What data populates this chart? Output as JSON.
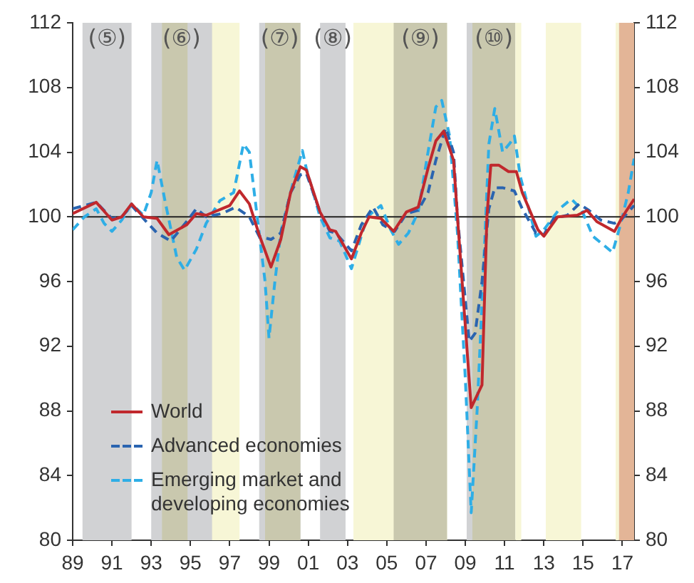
{
  "chart_data": {
    "type": "line",
    "xlim": [
      1989,
      2017.6
    ],
    "xticks": [
      {
        "value": 1989,
        "label": "89"
      },
      {
        "value": 1991,
        "label": "91"
      },
      {
        "value": 1993,
        "label": "93"
      },
      {
        "value": 1995,
        "label": "95"
      },
      {
        "value": 1997,
        "label": "97"
      },
      {
        "value": 1999,
        "label": "99"
      },
      {
        "value": 2001,
        "label": "01"
      },
      {
        "value": 2003,
        "label": "03"
      },
      {
        "value": 2005,
        "label": "05"
      },
      {
        "value": 2007,
        "label": "07"
      },
      {
        "value": 2009,
        "label": "09"
      },
      {
        "value": 2011,
        "label": "11"
      },
      {
        "value": 2013,
        "label": "13"
      },
      {
        "value": 2015,
        "label": "15"
      },
      {
        "value": 2017,
        "label": "17"
      }
    ],
    "ylim": [
      80,
      112
    ],
    "yticks": [
      80,
      84,
      88,
      92,
      96,
      100,
      104,
      108,
      112
    ],
    "y2lim": [
      80,
      112
    ],
    "y2ticks": [
      80,
      84,
      88,
      92,
      96,
      100,
      104,
      108,
      112
    ],
    "legend": "bottom left",
    "marker": "none",
    "series": [
      {
        "name": "World",
        "color": "#c0282d",
        "line_style": "solid",
        "x": [
          1989.0,
          1990.2,
          1991.0,
          1991.5,
          1992.0,
          1992.6,
          1993.3,
          1993.9,
          1994.8,
          1995.3,
          1995.8,
          1996.6,
          1997.0,
          1997.5,
          1998.0,
          1998.5,
          1999.1,
          1999.6,
          2000.1,
          2000.6,
          2000.9,
          2001.6,
          2002.1,
          2002.4,
          2003.2,
          2003.7,
          2004.1,
          2004.7,
          2005.35,
          2006.0,
          2006.6,
          2007.1,
          2007.5,
          2007.9,
          2008.4,
          2008.6,
          2009.3,
          2009.85,
          2010.1,
          2010.3,
          2010.7,
          2011.2,
          2011.6,
          2011.9,
          2012.7,
          2013.0,
          2013.7,
          2014.7,
          2015.2,
          2015.7,
          2016.6,
          2017.0,
          2017.6
        ],
        "values": [
          100.2,
          100.9,
          99.8,
          100.0,
          100.8,
          100.0,
          99.9,
          98.9,
          99.5,
          100.2,
          100.1,
          100.5,
          100.7,
          101.6,
          100.8,
          98.9,
          96.9,
          98.6,
          101.5,
          103.1,
          102.9,
          100.3,
          99.2,
          99.1,
          97.4,
          99.0,
          100.0,
          99.9,
          99.1,
          100.3,
          100.6,
          103.0,
          104.7,
          105.3,
          103.5,
          100.0,
          88.2,
          89.6,
          100.0,
          103.2,
          103.2,
          102.8,
          102.8,
          101.5,
          99.2,
          98.8,
          100.0,
          100.1,
          100.4,
          99.7,
          99.1,
          100.0,
          101.1
        ]
      },
      {
        "name": "Advanced economies",
        "color": "#2a64b0",
        "line_style": "dashed",
        "x": [
          1989.0,
          1990.2,
          1991.0,
          1991.5,
          1992.0,
          1992.6,
          1993.3,
          1994.0,
          1994.8,
          1995.3,
          1995.8,
          1996.6,
          1997.3,
          1998.0,
          1998.5,
          1999.1,
          1999.6,
          2000.1,
          2000.6,
          2000.9,
          2001.6,
          2002.1,
          2002.4,
          2003.2,
          2003.7,
          2004.3,
          2004.8,
          2005.4,
          2006.0,
          2006.6,
          2007.1,
          2007.5,
          2008.0,
          2008.4,
          2008.6,
          2009.2,
          2009.5,
          2009.85,
          2010.2,
          2010.5,
          2010.9,
          2011.5,
          2011.9,
          2012.6,
          2013.0,
          2013.5,
          2014.2,
          2014.8,
          2015.3,
          2015.9,
          2016.6,
          2017.0,
          2017.6
        ],
        "values": [
          100.5,
          100.9,
          99.9,
          100.0,
          100.7,
          99.9,
          99.0,
          98.5,
          99.7,
          100.5,
          100.0,
          100.2,
          100.6,
          100.0,
          98.8,
          98.6,
          99.0,
          101.5,
          102.6,
          102.7,
          100.3,
          99.1,
          99.0,
          97.9,
          99.5,
          100.6,
          99.5,
          99.1,
          100.2,
          100.4,
          101.5,
          103.5,
          105.5,
          104.0,
          100.0,
          92.3,
          92.8,
          96.0,
          100.5,
          101.8,
          101.8,
          101.6,
          100.5,
          99.0,
          98.9,
          99.9,
          100.1,
          100.8,
          100.4,
          99.8,
          99.6,
          99.9,
          100.7
        ]
      },
      {
        "name": "Emerging market and developing economies",
        "color": "#2eaee6",
        "line_style": "dashed",
        "x": [
          1989.0,
          1989.6,
          1990.2,
          1990.6,
          1991.0,
          1991.5,
          1992.0,
          1992.6,
          1993.0,
          1993.3,
          1993.7,
          1994.3,
          1994.7,
          1995.3,
          1995.8,
          1996.5,
          1997.2,
          1997.7,
          1998.0,
          1998.4,
          1998.8,
          1999.0,
          1999.3,
          1999.6,
          2000.2,
          2000.7,
          2000.9,
          2001.6,
          2002.1,
          2002.6,
          2003.2,
          2003.6,
          2004.0,
          2004.7,
          2005.2,
          2005.6,
          2006.1,
          2006.6,
          2007.1,
          2007.5,
          2007.8,
          2008.2,
          2008.6,
          2009.0,
          2009.3,
          2009.6,
          2009.9,
          2010.2,
          2010.5,
          2010.9,
          2011.3,
          2011.5,
          2011.8,
          2012.6,
          2013.0,
          2013.8,
          2014.4,
          2014.9,
          2015.5,
          2016.5,
          2016.9,
          2017.3,
          2017.6
        ],
        "values": [
          99.2,
          100.0,
          100.5,
          99.6,
          99.1,
          99.8,
          100.8,
          100.1,
          101.5,
          103.5,
          101.0,
          97.5,
          96.7,
          98.0,
          99.6,
          101.0,
          101.5,
          104.5,
          104.0,
          100.0,
          96.0,
          92.5,
          96.0,
          99.0,
          102.0,
          104.1,
          103.0,
          100.0,
          98.7,
          98.5,
          96.8,
          98.4,
          100.0,
          100.7,
          99.2,
          98.3,
          99.0,
          100.3,
          104.0,
          106.8,
          107.2,
          105.0,
          99.0,
          90.0,
          81.7,
          88.0,
          96.0,
          104.5,
          106.7,
          104.0,
          104.6,
          105.0,
          102.5,
          98.8,
          99.2,
          100.5,
          101.1,
          100.5,
          98.8,
          97.8,
          99.5,
          101.5,
          103.6
        ]
      }
    ],
    "ref_lines": [
      {
        "axis": "y",
        "value": 100,
        "color": "#222222"
      }
    ],
    "bands": [
      {
        "axis": "x",
        "from": 2003.3,
        "to": 2008.07,
        "color": "#f7f6d6"
      },
      {
        "axis": "x",
        "from": 1995.8,
        "to": 1997.5,
        "color": "#f7f6d6"
      },
      {
        "axis": "x",
        "from": 1989.5,
        "to": 1992.0,
        "label": "(⑤)",
        "color": "#d1d2d4"
      },
      {
        "axis": "x",
        "from": 1993.0,
        "to": 1996.1,
        "label": "(⑥)",
        "color": "#d1d2d4"
      },
      {
        "axis": "x",
        "from": 1998.5,
        "to": 2000.6,
        "label": "(⑦)",
        "color": "#d1d2d4"
      },
      {
        "axis": "x",
        "from": 2001.6,
        "to": 2002.9,
        "label": "(⑧)",
        "color": "#d1d2d4"
      },
      {
        "axis": "x",
        "from": 2005.35,
        "to": 2008.07,
        "label": "(⑨)",
        "color": "#c9c8ae"
      },
      {
        "axis": "x",
        "from": 2009.07,
        "to": 2009.36,
        "color": "#d1d2d4"
      },
      {
        "axis": "x",
        "from": 2009.36,
        "to": 2011.55,
        "label": "(⑩)",
        "color": "#c9c8ae"
      },
      {
        "axis": "x",
        "from": 2011.55,
        "to": 2011.85,
        "color": "#f7f6d6"
      },
      {
        "axis": "x",
        "from": 1993.55,
        "to": 1994.85,
        "color": "#c9c8ae"
      },
      {
        "axis": "x",
        "from": 1998.8,
        "to": 2000.6,
        "color": "#c9c8ae"
      },
      {
        "axis": "x",
        "from": 2013.1,
        "to": 2014.9,
        "color": "#f7f6d6"
      },
      {
        "axis": "x",
        "from": 2016.66,
        "to": 2016.83,
        "color": "#f7f6d6"
      },
      {
        "axis": "x",
        "from": 2016.83,
        "to": 2017.6,
        "color": "#e3b597"
      }
    ]
  }
}
